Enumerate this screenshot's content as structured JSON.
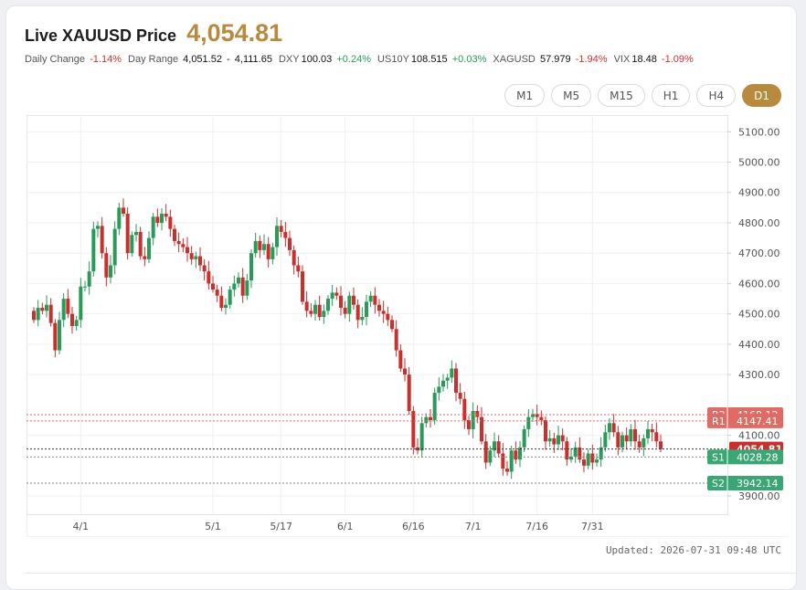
{
  "header": {
    "title": "Live XAUUSD Price",
    "price": "4,054.81"
  },
  "stats": {
    "daily_change_label": "Daily Change",
    "daily_change": "-1.14%",
    "day_range_label": "Day Range",
    "day_range_low": "4,051.52",
    "day_range_sep": "-",
    "day_range_high": "4,111.65",
    "dxy_label": "DXY",
    "dxy": "100.03",
    "dxy_change": "+0.24%",
    "us10y_label": "US10Y",
    "us10y": "108.515",
    "us10y_change": "+0.03%",
    "xagusd_label": "XAGUSD",
    "xagusd": "57.979",
    "xagusd_change": "-1.94%",
    "vix_label": "VIX",
    "vix": "18.48",
    "vix_change": "-1.09%"
  },
  "timeframes": [
    "M1",
    "M5",
    "M15",
    "H1",
    "H4",
    "D1"
  ],
  "active_timeframe": "D1",
  "footer": {
    "updated": "Updated: 2026-07-31 09:48 UTC"
  },
  "colors": {
    "up": "#2a9a58",
    "down": "#c8302e",
    "accent": "#b88a3e",
    "resistance": "#e06a64",
    "support": "#3aa673"
  },
  "chart_data": {
    "type": "candlestick",
    "x_ticks": [
      "4/1",
      "5/1",
      "5/17",
      "6/1",
      "6/16",
      "7/1",
      "7/16",
      "7/31"
    ],
    "y_ticks": [
      "5100.00",
      "5000.00",
      "4900.00",
      "4800.00",
      "4700.00",
      "4600.00",
      "4500.00",
      "4400.00",
      "4300.00",
      "4100.00",
      "3900.00"
    ],
    "ylim": [
      3840,
      5155
    ],
    "grid": true,
    "levels": [
      {
        "label": "R2",
        "value": "4168.12",
        "kind": "resistance"
      },
      {
        "label": "R1",
        "value": "4147.41",
        "kind": "resistance"
      },
      {
        "label": "",
        "value": "4054.81",
        "kind": "current"
      },
      {
        "label": "S1",
        "value": "4028.28",
        "kind": "support"
      },
      {
        "label": "S2",
        "value": "3942.14",
        "kind": "support"
      }
    ],
    "closes": [
      4480,
      4520,
      4510,
      4530,
      4470,
      4380,
      4480,
      4550,
      4500,
      4460,
      4480,
      4590,
      4590,
      4640,
      4780,
      4790,
      4700,
      4620,
      4660,
      4780,
      4850,
      4830,
      4700,
      4760,
      4770,
      4690,
      4680,
      4750,
      4820,
      4800,
      4830,
      4820,
      4780,
      4740,
      4730,
      4720,
      4700,
      4680,
      4690,
      4660,
      4640,
      4600,
      4580,
      4560,
      4520,
      4530,
      4580,
      4600,
      4620,
      4560,
      4610,
      4700,
      4740,
      4710,
      4730,
      4680,
      4720,
      4790,
      4770,
      4750,
      4710,
      4660,
      4640,
      4540,
      4510,
      4500,
      4530,
      4490,
      4510,
      4550,
      4570,
      4560,
      4520,
      4500,
      4560,
      4530,
      4480,
      4490,
      4540,
      4560,
      4530,
      4510,
      4500,
      4480,
      4450,
      4380,
      4320,
      4300,
      4180,
      4060,
      4050,
      4140,
      4160,
      4150,
      4240,
      4260,
      4280,
      4290,
      4320,
      4240,
      4220,
      4150,
      4120,
      4180,
      4160,
      4080,
      4010,
      4050,
      4080,
      4040,
      3990,
      3980,
      4050,
      4020,
      4060,
      4120,
      4160,
      4170,
      4160,
      4150,
      4080,
      4090,
      4070,
      4100,
      4080,
      4020,
      4030,
      4060,
      4020,
      4000,
      4040,
      4010,
      4020,
      4060,
      4110,
      4140,
      4110,
      4060,
      4100,
      4080,
      4120,
      4080,
      4060,
      4090,
      4120,
      4110,
      4080,
      4054.81
    ]
  }
}
